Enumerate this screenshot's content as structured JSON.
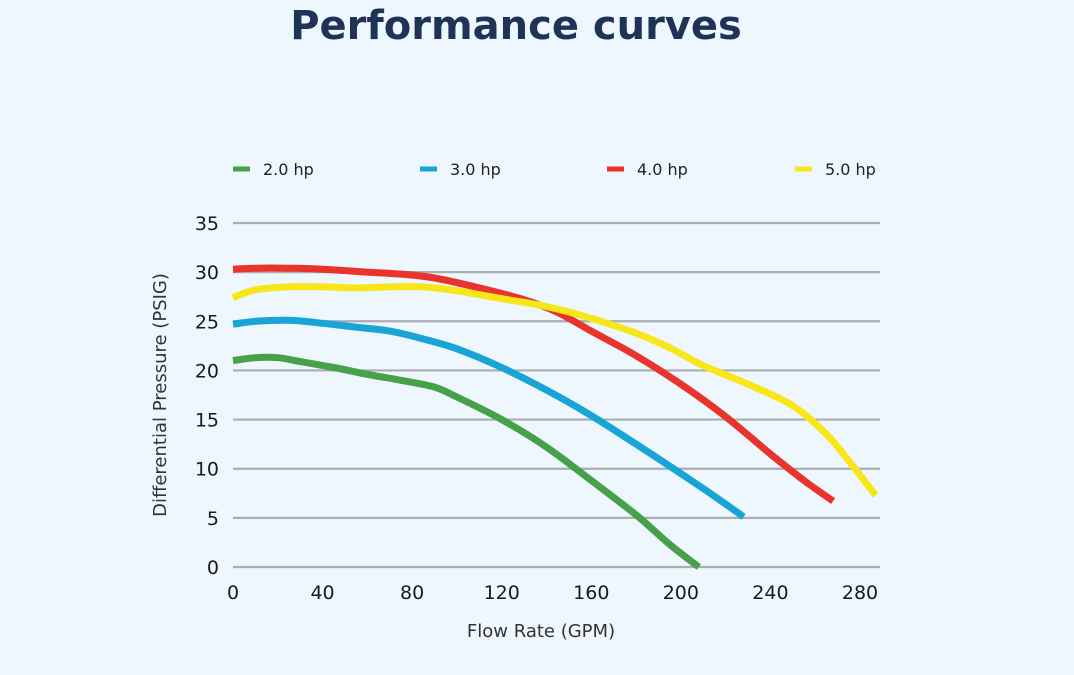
{
  "page": {
    "title": "Performance curves"
  },
  "chart_data": {
    "type": "line",
    "xlabel": "Flow Rate (GPM)",
    "ylabel": "Differential Pressure (PSIG)",
    "xlim": [
      0,
      290
    ],
    "ylim": [
      0,
      35
    ],
    "xticks": [
      0,
      40,
      80,
      120,
      160,
      200,
      240,
      280
    ],
    "yticks": [
      0,
      5,
      10,
      15,
      20,
      25,
      30,
      35
    ],
    "grid": "horizontal",
    "legend_position": "top",
    "series": [
      {
        "name": "2.0 hp",
        "color": "#47a04a",
        "points": [
          [
            0,
            21.0
          ],
          [
            10,
            21.3
          ],
          [
            20,
            21.3
          ],
          [
            30,
            20.9
          ],
          [
            45,
            20.3
          ],
          [
            60,
            19.6
          ],
          [
            75,
            19.0
          ],
          [
            90,
            18.3
          ],
          [
            100,
            17.3
          ],
          [
            120,
            15.0
          ],
          [
            140,
            12.2
          ],
          [
            160,
            8.8
          ],
          [
            180,
            5.3
          ],
          [
            195,
            2.3
          ],
          [
            208,
            0
          ]
        ]
      },
      {
        "name": "3.0 hp",
        "color": "#19a4d6",
        "points": [
          [
            0,
            24.7
          ],
          [
            10,
            25.0
          ],
          [
            25,
            25.1
          ],
          [
            40,
            24.8
          ],
          [
            55,
            24.4
          ],
          [
            70,
            24.0
          ],
          [
            85,
            23.2
          ],
          [
            100,
            22.2
          ],
          [
            120,
            20.3
          ],
          [
            140,
            18.0
          ],
          [
            160,
            15.4
          ],
          [
            180,
            12.5
          ],
          [
            200,
            9.5
          ],
          [
            215,
            7.2
          ],
          [
            228,
            5.1
          ]
        ]
      },
      {
        "name": "4.0 hp",
        "color": "#e8342c",
        "points": [
          [
            0,
            30.3
          ],
          [
            10,
            30.4
          ],
          [
            25,
            30.4
          ],
          [
            40,
            30.3
          ],
          [
            60,
            30.0
          ],
          [
            75,
            29.8
          ],
          [
            90,
            29.4
          ],
          [
            110,
            28.4
          ],
          [
            130,
            27.2
          ],
          [
            145,
            25.9
          ],
          [
            160,
            24.0
          ],
          [
            180,
            21.5
          ],
          [
            200,
            18.6
          ],
          [
            220,
            15.3
          ],
          [
            240,
            11.5
          ],
          [
            255,
            8.8
          ],
          [
            268,
            6.7
          ]
        ]
      },
      {
        "name": "5.0 hp",
        "color": "#f7e71a",
        "points": [
          [
            0,
            27.4
          ],
          [
            10,
            28.2
          ],
          [
            25,
            28.5
          ],
          [
            40,
            28.5
          ],
          [
            55,
            28.4
          ],
          [
            70,
            28.5
          ],
          [
            85,
            28.5
          ],
          [
            100,
            28.1
          ],
          [
            120,
            27.3
          ],
          [
            140,
            26.5
          ],
          [
            160,
            25.3
          ],
          [
            180,
            23.8
          ],
          [
            195,
            22.3
          ],
          [
            210,
            20.5
          ],
          [
            230,
            18.6
          ],
          [
            250,
            16.4
          ],
          [
            265,
            13.5
          ],
          [
            275,
            10.8
          ],
          [
            287,
            7.3
          ]
        ]
      }
    ]
  }
}
